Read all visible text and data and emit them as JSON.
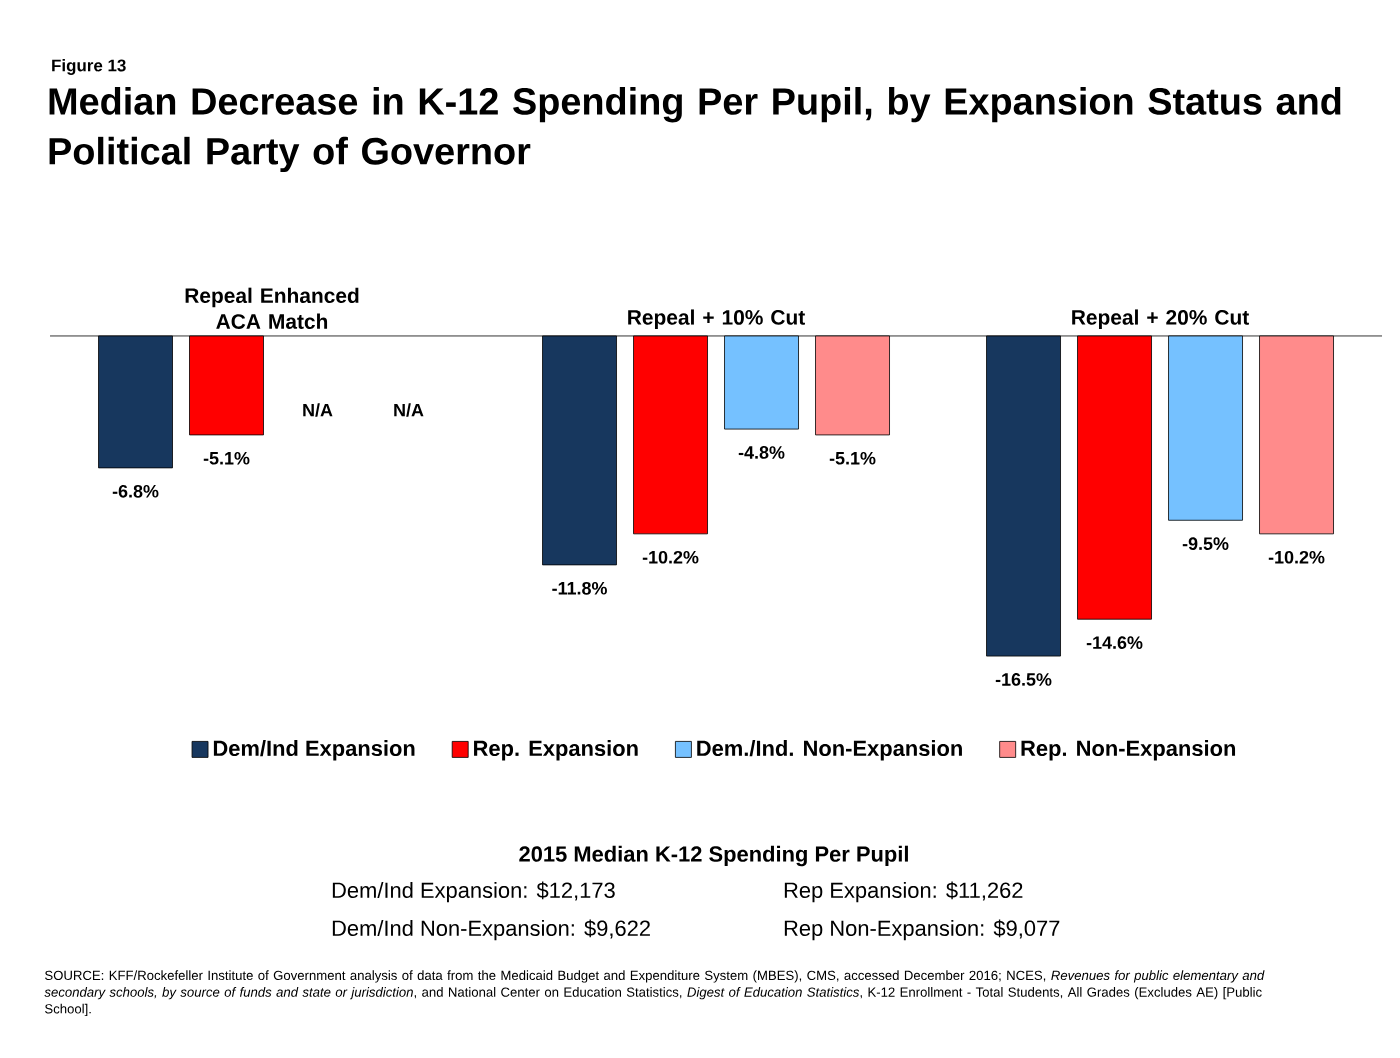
{
  "chart_data": {
    "type": "bar",
    "title": "Median Decrease in K-12 Spending Per Pupil, by Expansion Status and Political Party of Governor",
    "categories": [
      "Repeal Enhanced ACA Match",
      "Repeal + 10% Cut",
      "Repeal + 20% Cut"
    ],
    "series": [
      {
        "name": "Dem/Ind Expansion",
        "color": "#17375e",
        "values": [
          -6.8,
          -11.8,
          -16.5
        ],
        "value_labels": [
          "-6.8%",
          "-11.8%",
          "-16.5%"
        ]
      },
      {
        "name": "Rep. Expansion",
        "color": "#ff0000",
        "values": [
          -5.1,
          -10.2,
          -14.6
        ],
        "value_labels": [
          "-5.1%",
          "-10.2%",
          "-14.6%"
        ]
      },
      {
        "name": "Dem./Ind. Non-Expansion",
        "color": "#75c1ff",
        "values": [
          null,
          -4.8,
          -9.5
        ],
        "value_labels": [
          "N/A",
          "-4.8%",
          "-9.5%"
        ]
      },
      {
        "name": "Rep. Non-Expansion",
        "color": "#ff8b8b",
        "values": [
          null,
          -5.1,
          -10.2
        ],
        "value_labels": [
          "N/A",
          "-5.1%",
          "-10.2%"
        ]
      }
    ],
    "legend": "bottom",
    "annotations": [
      "Figure 13",
      "2015 Median K-12 Spending Per Pupil",
      "Dem/Ind Expansion: $12,173",
      "Rep Expansion: $11,262",
      "Dem/Ind Non-Expansion: $9,622",
      "Rep Non-Expansion: $9,077",
      "SOURCE: KFF/Rockefeller Institute of Government analysis of data from the Medicaid Budget and Expenditure System (MBES), CMS, accessed December 2016; NCES, *Revenues for public elementary and secondary schools, by source of funds and state or jurisdiction*, and National Center on Education Statistics, *Digest of Education Statistics*, K-12 Enrollment - Total Students, All Grades (Excludes AE) [Public School]."
    ]
  }
}
